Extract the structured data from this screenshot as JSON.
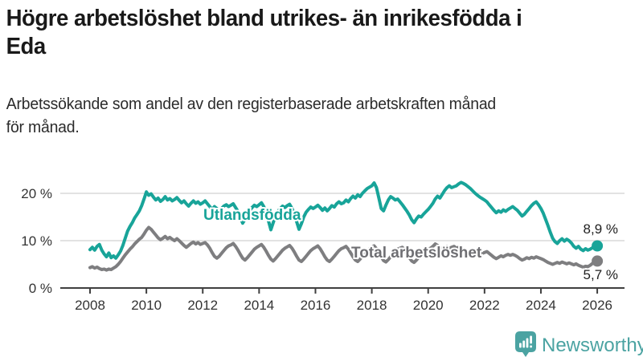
{
  "header": {
    "title": "Högre arbetslöshet bland utrikes- än inrikesfödda i Eda",
    "title_lines": [
      "Högre arbetslöshet bland utrikes- än inrikesfödda i",
      "Eda"
    ],
    "subtitle": "Arbetssökande som andel av den registerbaserade arbetskraften månad för månad.",
    "subtitle_lines": [
      "Arbetssökande som andel av den registerbaserade arbetskraften månad",
      "för månad."
    ]
  },
  "chart_data": {
    "type": "line",
    "title": "Högre arbetslöshet bland utrikes- än inrikesfödda i Eda",
    "frequency": "monthly",
    "x_start": "2008-01",
    "x_end": "2026-01",
    "x_ticks": [
      2008,
      2010,
      2012,
      2014,
      2016,
      2018,
      2020,
      2022,
      2024,
      2026
    ],
    "y_ticks": [
      {
        "value": 0,
        "label": "0 %"
      },
      {
        "value": 10,
        "label": "10 %"
      },
      {
        "value": 20,
        "label": "20 %"
      }
    ],
    "ylim": [
      0,
      24
    ],
    "grid": "horizontal",
    "legend_position": "inline-labels",
    "grid_color": "#d8d8d8",
    "axis_color": "#404040",
    "series": [
      {
        "name": "Utlandsfödda",
        "color": "#18a499",
        "label_color": "#18a499",
        "end_label": "8,9 %",
        "end_value": 8.9,
        "values": [
          8.1,
          8.6,
          8.0,
          8.8,
          9.2,
          8.0,
          7.2,
          6.6,
          7.4,
          6.4,
          6.8,
          6.3,
          7.0,
          7.8,
          9.0,
          10.5,
          12.0,
          13.0,
          13.8,
          14.8,
          15.5,
          16.3,
          17.4,
          18.8,
          20.3,
          19.6,
          19.9,
          19.2,
          18.6,
          19.0,
          18.3,
          18.7,
          19.3,
          18.6,
          18.9,
          18.4,
          18.7,
          19.1,
          18.5,
          18.0,
          18.4,
          17.8,
          17.3,
          17.9,
          18.4,
          17.9,
          18.2,
          17.7,
          18.0,
          18.4,
          17.8,
          17.2,
          16.6,
          17.2,
          16.8,
          16.2,
          16.8,
          17.3,
          17.6,
          17.2,
          17.5,
          17.8,
          17.0,
          16.2,
          15.0,
          13.7,
          14.5,
          15.5,
          16.4,
          17.0,
          17.5,
          17.2,
          17.6,
          18.0,
          17.2,
          16.0,
          14.2,
          12.3,
          13.8,
          15.2,
          16.2,
          16.8,
          17.3,
          17.0,
          17.4,
          17.7,
          16.8,
          15.6,
          14.0,
          12.4,
          13.6,
          15.0,
          16.0,
          16.6,
          17.1,
          16.8,
          17.1,
          17.5,
          17.0,
          16.4,
          16.9,
          16.3,
          16.8,
          17.4,
          17.1,
          17.8,
          18.2,
          17.8,
          18.0,
          18.6,
          18.2,
          18.9,
          19.4,
          19.0,
          19.7,
          19.3,
          20.0,
          20.5,
          21.0,
          21.3,
          21.6,
          22.2,
          21.2,
          19.0,
          16.8,
          16.3,
          17.5,
          18.6,
          19.3,
          19.0,
          18.6,
          18.8,
          18.2,
          17.6,
          16.9,
          16.2,
          15.4,
          14.4,
          13.8,
          14.6,
          15.2,
          15.0,
          15.6,
          16.1,
          16.6,
          17.2,
          17.9,
          18.8,
          19.4,
          19.0,
          19.8,
          20.6,
          21.2,
          21.6,
          21.2,
          21.4,
          21.6,
          22.0,
          22.3,
          22.1,
          21.8,
          21.4,
          21.0,
          20.5,
          20.0,
          19.6,
          19.2,
          18.9,
          18.6,
          18.2,
          17.6,
          17.0,
          16.4,
          15.9,
          16.3,
          16.0,
          16.5,
          16.2,
          16.6,
          16.9,
          17.2,
          16.8,
          16.4,
          15.8,
          15.2,
          15.6,
          16.2,
          16.8,
          17.4,
          17.9,
          18.2,
          17.6,
          16.8,
          15.8,
          14.5,
          13.2,
          11.8,
          10.5,
          9.8,
          9.4,
          10.0,
          10.4,
          9.9,
          10.3,
          10.0,
          9.5,
          8.8,
          8.4,
          8.8,
          8.2,
          7.9,
          8.3,
          8.0,
          8.2,
          8.5,
          8.7,
          8.9
        ]
      },
      {
        "name": "Total arbetslöshet",
        "color": "#7e7e80",
        "label_color": "#6f6f73",
        "end_label": "5,7 %",
        "end_value": 5.7,
        "values": [
          4.3,
          4.5,
          4.2,
          4.4,
          4.1,
          3.9,
          4.0,
          3.8,
          4.0,
          3.9,
          4.2,
          4.5,
          5.0,
          5.6,
          6.3,
          7.0,
          7.6,
          8.2,
          8.7,
          9.3,
          9.8,
          10.3,
          10.7,
          11.4,
          12.2,
          12.8,
          12.4,
          11.8,
          11.2,
          10.6,
          10.2,
          10.5,
          10.9,
          10.4,
          10.7,
          10.3,
          10.0,
          10.4,
          10.0,
          9.5,
          9.0,
          8.6,
          9.0,
          9.4,
          9.7,
          9.3,
          9.6,
          9.2,
          9.4,
          9.6,
          9.1,
          8.4,
          7.5,
          6.7,
          6.3,
          6.7,
          7.3,
          7.9,
          8.5,
          8.9,
          9.1,
          9.4,
          8.8,
          8.0,
          7.1,
          6.3,
          5.9,
          6.4,
          7.0,
          7.6,
          8.2,
          8.6,
          8.9,
          9.2,
          8.6,
          7.8,
          6.9,
          6.1,
          5.7,
          6.2,
          6.8,
          7.4,
          8.0,
          8.4,
          8.7,
          9.0,
          8.4,
          7.6,
          6.7,
          5.9,
          5.6,
          6.1,
          6.7,
          7.3,
          7.9,
          8.3,
          8.6,
          8.9,
          8.3,
          7.5,
          6.6,
          5.9,
          5.6,
          6.1,
          6.7,
          7.3,
          7.9,
          8.3,
          8.5,
          8.8,
          8.2,
          7.4,
          6.6,
          5.9,
          5.6,
          6.1,
          6.7,
          7.3,
          7.9,
          8.3,
          8.6,
          8.9,
          8.3,
          7.5,
          6.6,
          5.8,
          5.5,
          6.0,
          6.6,
          7.2,
          7.8,
          8.2,
          8.4,
          8.6,
          8.0,
          7.2,
          6.4,
          5.7,
          5.4,
          5.9,
          6.5,
          7.0,
          7.5,
          7.9,
          8.2,
          8.4,
          8.8,
          9.3,
          9.0,
          8.6,
          8.2,
          8.5,
          8.8,
          8.4,
          8.6,
          8.8,
          8.4,
          8.6,
          8.2,
          7.8,
          7.4,
          7.0,
          6.8,
          7.1,
          7.4,
          7.2,
          7.5,
          7.3,
          7.5,
          7.7,
          7.3,
          6.9,
          6.5,
          6.2,
          6.5,
          6.8,
          6.6,
          6.9,
          7.1,
          6.9,
          7.1,
          6.9,
          6.6,
          6.2,
          5.9,
          6.1,
          6.4,
          6.2,
          6.5,
          6.3,
          6.6,
          6.4,
          6.2,
          6.0,
          5.7,
          5.4,
          5.2,
          5.0,
          5.2,
          5.4,
          5.2,
          5.5,
          5.3,
          5.1,
          5.3,
          5.1,
          4.9,
          5.1,
          4.8,
          4.6,
          4.4,
          4.6,
          4.5,
          4.8,
          5.2,
          5.5,
          5.7
        ]
      }
    ]
  },
  "footer": {
    "brand": "Newsworthy",
    "brand_color": "#4ba3a2",
    "logo_icon": "bar-chart-speech-bubble-icon"
  }
}
